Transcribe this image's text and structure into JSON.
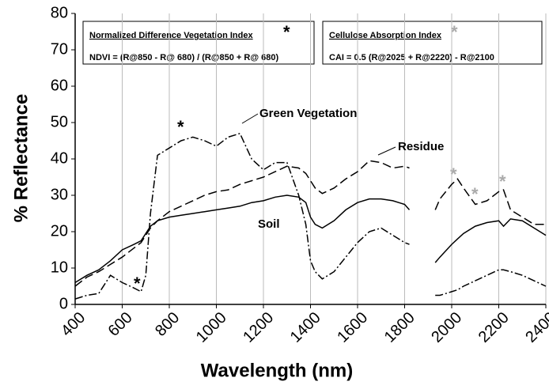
{
  "chart_data": {
    "type": "line",
    "xlabel": "Wavelength (nm)",
    "ylabel": "% Reflectance",
    "x": [
      400,
      450,
      500,
      550,
      600,
      650,
      680,
      700,
      720,
      750,
      800,
      850,
      900,
      950,
      1000,
      1050,
      1100,
      1150,
      1200,
      1250,
      1300,
      1350,
      1380,
      1400,
      1420,
      1450,
      1500,
      1550,
      1600,
      1650,
      1700,
      1750,
      1800,
      1820,
      1870,
      1930,
      1950,
      2000,
      2025,
      2050,
      2100,
      2150,
      2200,
      2220,
      2250,
      2300,
      2350,
      2400
    ],
    "series": [
      {
        "name": "Green Vegetation",
        "color": "#000000",
        "dash": "dashdot",
        "values": [
          1.5,
          2.5,
          3,
          8,
          6,
          4.5,
          3.5,
          8,
          25,
          41,
          43,
          45,
          46,
          45,
          43.5,
          46,
          47,
          40,
          37,
          39,
          39,
          30,
          22,
          12,
          9,
          7,
          9,
          13,
          17,
          20,
          21,
          19,
          17,
          16.5,
          null,
          2.5,
          2.5,
          3.5,
          4,
          5,
          6.5,
          8,
          9.5,
          9.5,
          9,
          8,
          6.5,
          5
        ]
      },
      {
        "name": "Residue",
        "color": "#000000",
        "dash": "dashed",
        "values": [
          5,
          7.5,
          9,
          11,
          13,
          15.5,
          17,
          19,
          21,
          23,
          25.5,
          27,
          28.5,
          30,
          31,
          31.5,
          33,
          34,
          35,
          36.5,
          38,
          37.5,
          36,
          34,
          32,
          30.5,
          32,
          34.5,
          36.5,
          39.5,
          39,
          37.5,
          38,
          37.5,
          null,
          26,
          29,
          33,
          34.5,
          32,
          27.5,
          28.5,
          31,
          31.5,
          26,
          24,
          22,
          22
        ]
      },
      {
        "name": "Soil",
        "color": "#000000",
        "dash": "solid",
        "values": [
          6,
          8,
          9.5,
          12,
          15,
          16.5,
          17.5,
          19.5,
          21.5,
          23,
          24,
          24.5,
          25,
          25.5,
          26,
          26.5,
          27,
          28,
          28.5,
          29.5,
          30,
          29.5,
          28,
          24,
          22,
          21,
          23,
          26,
          28,
          29,
          29,
          28.5,
          27.5,
          26,
          null,
          11.5,
          13,
          16.5,
          18,
          19.5,
          21.5,
          22.5,
          23,
          21.5,
          23.5,
          23,
          21,
          19
        ]
      }
    ],
    "xlim": [
      400,
      2400
    ],
    "xticks": [
      400,
      600,
      800,
      1000,
      1200,
      1400,
      1600,
      1800,
      2000,
      2200,
      2400
    ],
    "ylim": [
      0,
      80
    ],
    "yticks": [
      0,
      10,
      20,
      30,
      40,
      50,
      60,
      70,
      80
    ],
    "grid": "x",
    "ndvi_box": {
      "title": "Normalized Difference Vegetation Index",
      "marker": "*",
      "formula": "NDVI = (R@850 - R@ 680) / (R@850 + R@ 680)"
    },
    "cai_box": {
      "title": "Cellulose Absorption Index",
      "marker": "*",
      "formula": "CAI = 0.5 (R@2025 + R@2220) - R@2100"
    },
    "markers": [
      "*",
      "*",
      "*",
      "*",
      "*"
    ]
  }
}
